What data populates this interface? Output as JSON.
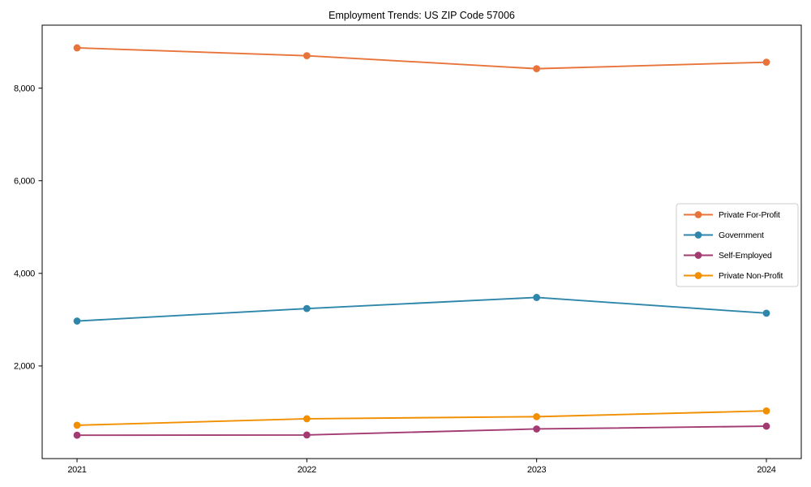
{
  "chart_data": {
    "type": "line",
    "title": "Employment Trends: US ZIP Code 57006",
    "xlabel": "",
    "ylabel": "",
    "categories": [
      "2021",
      "2022",
      "2023",
      "2024"
    ],
    "series": [
      {
        "name": "Private For-Profit",
        "color": "#E8743B",
        "values": [
          8870,
          8700,
          8420,
          8560
        ]
      },
      {
        "name": "Government",
        "color": "#2E86AB",
        "values": [
          2970,
          3240,
          3480,
          3140
        ]
      },
      {
        "name": "Self-Employed",
        "color": "#A23B72",
        "values": [
          505,
          510,
          640,
          700
        ]
      },
      {
        "name": "Private Non-Profit",
        "color": "#F18F01",
        "values": [
          720,
          860,
          905,
          1030
        ]
      }
    ],
    "y_ticks": [
      {
        "value": 2000,
        "label": "2,000"
      },
      {
        "value": 4000,
        "label": "4,000"
      },
      {
        "value": 6000,
        "label": "6,000"
      },
      {
        "value": 8000,
        "label": "8,000"
      }
    ],
    "ylim": [
      0,
      9360
    ],
    "grid": false,
    "legend_position": "center right",
    "spine_color": "#000000",
    "background_color": "#ffffff"
  }
}
